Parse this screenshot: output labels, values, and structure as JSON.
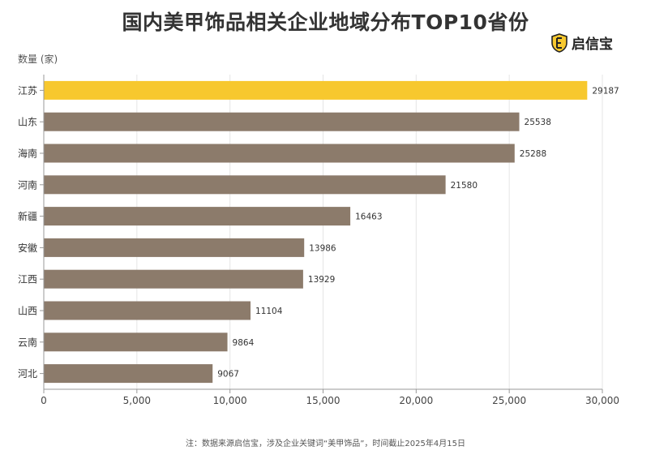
{
  "title": "国内美甲饰品相关企业地域分布TOP10省份",
  "brand": {
    "name": "启信宝"
  },
  "footnote": "注：数据来源启信宝，涉及企业关键词“美甲饰品”，时间截止2025年4月15日",
  "chart_data": {
    "type": "bar",
    "orientation": "horizontal",
    "ylabel": "数量 (家)",
    "categories": [
      "江苏",
      "山东",
      "海南",
      "河南",
      "新疆",
      "安徽",
      "江西",
      "山西",
      "云南",
      "河北"
    ],
    "values": [
      29187,
      25538,
      25288,
      21580,
      16463,
      13986,
      13929,
      11104,
      9864,
      9067
    ],
    "xlim": [
      0,
      30000
    ],
    "xticks": [
      0,
      5000,
      10000,
      15000,
      20000,
      25000,
      30000
    ],
    "xtick_labels": [
      "0",
      "5,000",
      "10,000",
      "15,000",
      "20,000",
      "25,000",
      "30,000"
    ],
    "highlight_color": "#F7C82E",
    "bar_color": "#8C7B6B",
    "grid": true
  }
}
